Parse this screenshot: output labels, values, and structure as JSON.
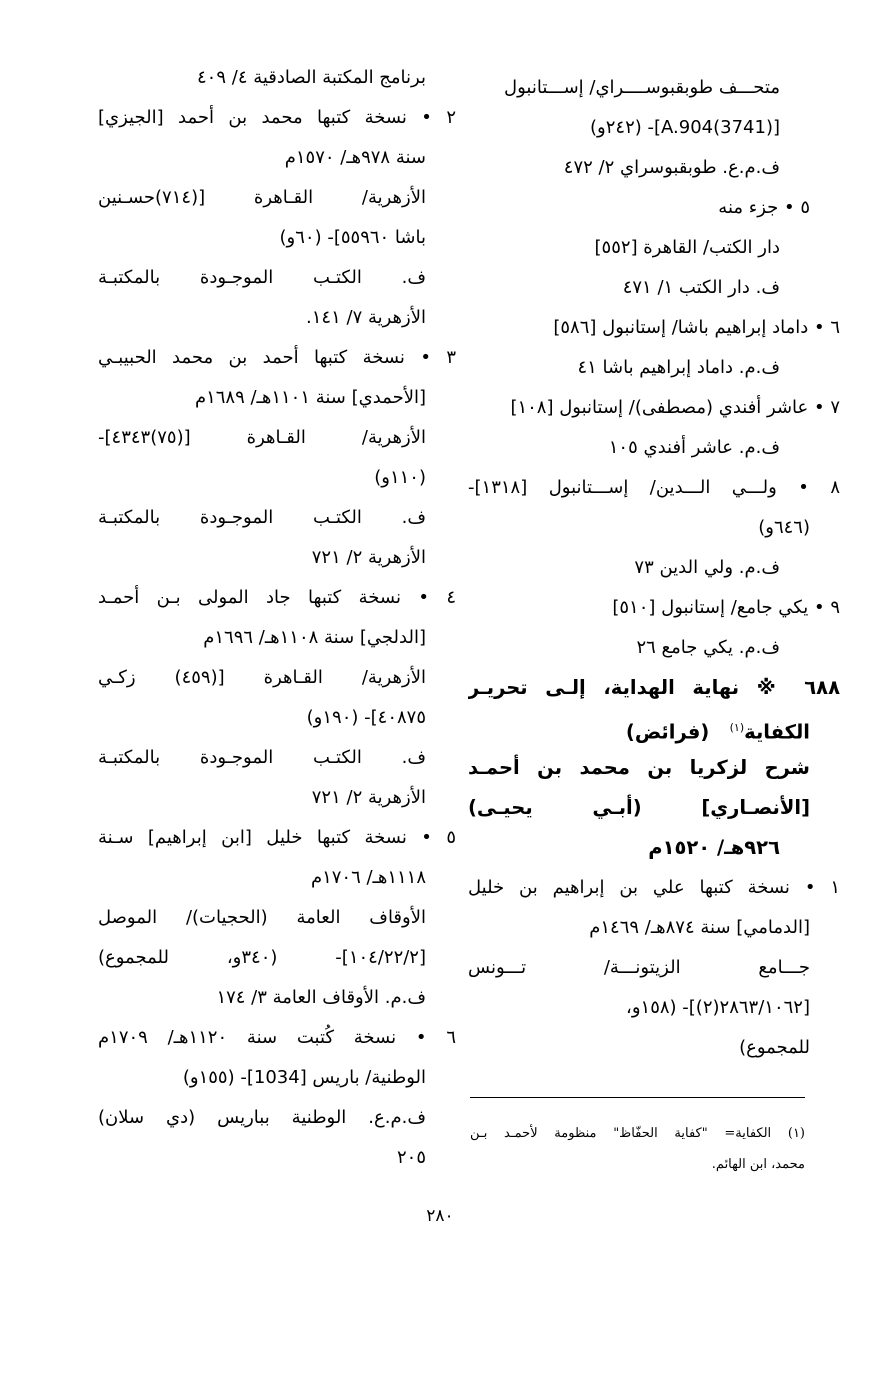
{
  "right_column": {
    "lines": [
      {
        "text": "متحـــف طوبقبوســــراي/ إســـتانبول",
        "kind": "sub",
        "full": false
      },
      {
        "text": "[A.904(3741)]- (٢٤٢و)",
        "kind": "sub",
        "full": false
      },
      {
        "text": "ف.م.ع. طوبقبوسراي ٢/ ٤٧٢",
        "kind": "sub",
        "full": false
      },
      {
        "text": "٥ • جزء منه",
        "kind": "cont",
        "full": false
      },
      {
        "text": "دار الكتب/ القاهرة [٥٥٢]",
        "kind": "sub",
        "full": false
      },
      {
        "text": "ف. دار الكتب ١/ ٤٧١",
        "kind": "sub",
        "full": false
      },
      {
        "text": "٦ • داماد إبراهيم باشا/ إستانبول [٥٨٦]",
        "kind": "item",
        "full": false
      },
      {
        "text": "ف.م. داماد إبراهيم باشا ٤١",
        "kind": "sub",
        "full": false
      },
      {
        "text": "٧ • عاشر أفندي (مصطفى)/ إستانبول [١٠٨]",
        "kind": "item",
        "full": false
      },
      {
        "text": "ف.م. عاشر أفندي ١٠٥",
        "kind": "sub",
        "full": false
      },
      {
        "text": "٨ • ولـــي الـــدين/ إســـتانبول [١٣١٨]-",
        "kind": "item",
        "full": true
      },
      {
        "text": "(٦٤٦و)",
        "kind": "cont",
        "full": false
      },
      {
        "text": "ف.م. ولي الدين ٧٣",
        "kind": "sub",
        "full": false
      },
      {
        "text": "٩ • يكي جامع/ إستانبول [٥١٠]",
        "kind": "item",
        "full": false
      },
      {
        "text": "ف.م. يكي جامع ٢٦",
        "kind": "sub",
        "full": false
      },
      {
        "text": "٦٨٨ ※ نهاية الهداية، إلـى تحريـر",
        "kind": "heading",
        "full": true
      },
      {
        "text": "الكفاية",
        "sup": "(١)",
        "after": "   (فرائض)",
        "kind": "heading-cont",
        "full": false
      },
      {
        "text": "شرح لزكريا بن محمد بن أحمـد",
        "kind": "heading-cont",
        "full": true
      },
      {
        "text": "[الأنصـاري] (أبـي يحيـى)",
        "kind": "heading-cont",
        "full": true
      },
      {
        "text": "٩٢٦هـ/ ١٥٢٠م",
        "kind": "heading-sub",
        "full": false
      },
      {
        "text": "١ • نسخة كتبها علي بن إبراهيم بن خليل",
        "kind": "item",
        "full": true
      },
      {
        "text": "[الدمامي] سنة ٨٧٤هـ/ ١٤٦٩م",
        "kind": "cont",
        "full": false
      },
      {
        "text": "جـــامع الزيتونـــة/ تـــونس",
        "kind": "cont",
        "full": true
      },
      {
        "text": "[٢٨٦٣/١٠٦٢(٢)]- (١٥٨و،",
        "kind": "cont",
        "full": false
      },
      {
        "text": "للمجموع)",
        "kind": "cont",
        "full": false
      }
    ]
  },
  "left_column": {
    "lines": [
      {
        "text": "برنامج المكتبة الصادقية ٤/ ٤٠٩",
        "kind": "cont",
        "full": false
      },
      {
        "text": "٢ • نسخة كتبها محمد بن أحمد [الجيزي]",
        "kind": "item",
        "full": true
      },
      {
        "text": "سنة ٩٧٨هـ/ ١٥٧٠م",
        "kind": "cont",
        "full": false
      },
      {
        "text": "الأزهرية/ القـاهرة [(٧١٤)حسـنين",
        "kind": "cont",
        "full": true
      },
      {
        "text": "باشا ٥٥٩٦٠]- (٦٠و)",
        "kind": "cont",
        "full": false
      },
      {
        "text": "ف. الكتـب الموجـودة بالمكتبـة",
        "kind": "cont",
        "full": true
      },
      {
        "text": "الأزهرية ٧/ ١٤١.",
        "kind": "cont",
        "full": false
      },
      {
        "text": "٣ • نسخة كتبها أحمد بن محمد الحبيبـي",
        "kind": "item",
        "full": true
      },
      {
        "text": "[الأحمدي] سنة ١١٠١هـ/ ١٦٨٩م",
        "kind": "cont",
        "full": false
      },
      {
        "text": "الأزهرية/ القـاهرة [(٧٥)٤٣٤٣]-",
        "kind": "cont",
        "full": true
      },
      {
        "text": "(١١٠و)",
        "kind": "cont",
        "full": false
      },
      {
        "text": "ف. الكتـب الموجـودة بالمكتبـة",
        "kind": "cont",
        "full": true
      },
      {
        "text": "الأزهرية ٢/ ٧٢١",
        "kind": "cont",
        "full": false
      },
      {
        "text": "٤ • نسخة كتبها جاد المولى بـن أحمـد",
        "kind": "item",
        "full": true
      },
      {
        "text": "[الدلجي] سنة ١١٠٨هـ/ ١٦٩٦م",
        "kind": "cont",
        "full": false
      },
      {
        "text": "الأزهرية/ القـاهرة [(٤٥٩) زكـي",
        "kind": "cont",
        "full": true
      },
      {
        "text": "٤٠٨٧٥]- (١٩٠و)",
        "kind": "cont",
        "full": false
      },
      {
        "text": "ف. الكتـب الموجـودة بالمكتبـة",
        "kind": "cont",
        "full": true
      },
      {
        "text": "الأزهرية ٢/ ٧٢١",
        "kind": "cont",
        "full": false
      },
      {
        "text": "٥ • نسخة كتبها خليل [ابن إبراهيم] سـنة",
        "kind": "item",
        "full": true
      },
      {
        "text": "١١١٨هـ/ ١٧٠٦م",
        "kind": "cont",
        "full": false
      },
      {
        "text": "الأوقاف العامة (الحجيات)/ الموصل",
        "kind": "cont",
        "full": true
      },
      {
        "text": "[١٠٤/٢٢/٢]- (٣٤٠و، للمجموع)",
        "kind": "cont",
        "full": true
      },
      {
        "text": "ف.م. الأوقاف العامة ٣/ ١٧٤",
        "kind": "cont",
        "full": false
      },
      {
        "text": "٦ • نسخة كُتبت سنة ١١٢٠هـ/ ١٧٠٩م",
        "kind": "item",
        "full": true
      },
      {
        "text": "الوطنية/ باريس [1034]- (١٥٥و)",
        "kind": "cont",
        "full": false
      },
      {
        "text": "ف.م.ع. الوطنية بباريس (دي سلان)",
        "kind": "cont",
        "full": true
      },
      {
        "text": "٢٠٥",
        "kind": "cont",
        "full": false
      }
    ]
  },
  "footnote": {
    "lines": [
      "(١) الكفاية= \"كفاية الحفّاظ\" منظومة لأحمـد بـن",
      "محمد، ابن الهائم."
    ]
  },
  "page_number": "٢٨٠"
}
